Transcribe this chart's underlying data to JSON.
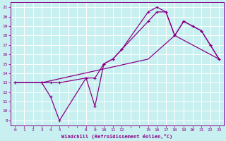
{
  "xlabel": "Windchill (Refroidissement éolien,°C)",
  "bg_color": "#c8f0f0",
  "grid_color": "#ffffff",
  "line_color": "#880088",
  "xlim": [
    -0.5,
    23.5
  ],
  "ylim": [
    8.5,
    21.5
  ],
  "xtick_vals": [
    0,
    1,
    2,
    3,
    4,
    5,
    6,
    7,
    8,
    9,
    10,
    11,
    12,
    13,
    14,
    15,
    16,
    17,
    18,
    19,
    20,
    21,
    22,
    23
  ],
  "xtick_labels": [
    "0",
    "1",
    "2",
    "3",
    "4",
    "5",
    "",
    "",
    "8",
    "9",
    "1011",
    "12",
    "",
    "",
    "",
    "1516",
    "17",
    "18",
    "19",
    "20",
    "2122",
    "23",
    "",
    ""
  ],
  "ytick_vals": [
    9,
    10,
    11,
    12,
    13,
    14,
    15,
    16,
    17,
    18,
    19,
    20,
    21
  ],
  "line1_x": [
    0,
    3,
    4,
    5,
    8,
    9,
    10,
    11,
    12,
    15,
    16,
    17,
    18,
    19,
    20,
    21,
    22,
    23
  ],
  "line1_y": [
    13,
    13,
    11.5,
    9,
    13.5,
    10.5,
    15,
    15.5,
    16.5,
    20.5,
    21,
    20.5,
    18,
    19.5,
    19,
    18.5,
    17,
    15.5
  ],
  "line2_x": [
    0,
    3,
    4,
    5,
    8,
    9,
    10,
    11,
    12,
    15,
    16,
    17,
    18,
    19,
    20,
    21,
    22,
    23
  ],
  "line2_y": [
    13,
    13,
    13,
    13,
    13.5,
    13.5,
    15,
    15.5,
    16.5,
    19.5,
    20.5,
    20.5,
    18,
    19.5,
    19,
    18.5,
    17,
    15.5
  ],
  "line3_x": [
    0,
    3,
    15,
    18,
    23
  ],
  "line3_y": [
    13,
    13,
    15.5,
    18,
    15.5
  ]
}
